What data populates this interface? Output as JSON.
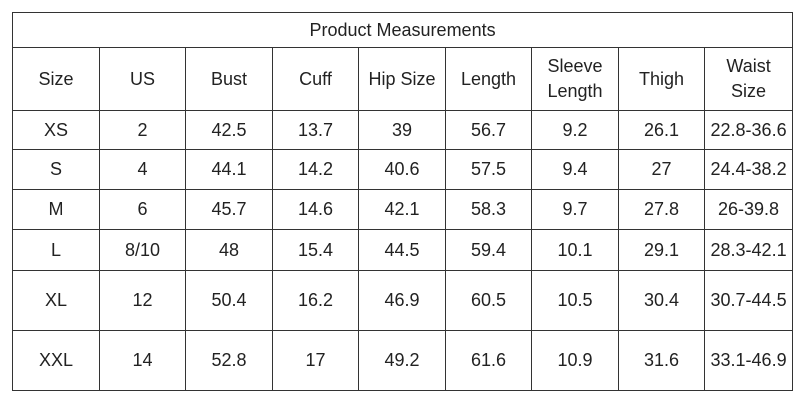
{
  "table": {
    "title": "Product Measurements",
    "header": [
      "Size",
      "US",
      "Bust",
      "Cuff",
      "Hip Size",
      "Length",
      "Sleeve Length",
      "Thigh",
      "Waist Size"
    ],
    "rows": [
      [
        "XS",
        "2",
        "42.5",
        "13.7",
        "39",
        "56.7",
        "9.2",
        "26.1",
        "22.8-36.6"
      ],
      [
        "S",
        "4",
        "44.1",
        "14.2",
        "40.6",
        "57.5",
        "9.4",
        "27",
        "24.4-38.2"
      ],
      [
        "M",
        "6",
        "45.7",
        "14.6",
        "42.1",
        "58.3",
        "9.7",
        "27.8",
        "26-39.8"
      ],
      [
        "L",
        "8/10",
        "48",
        "15.4",
        "44.5",
        "59.4",
        "10.1",
        "29.1",
        "28.3-42.1"
      ],
      [
        "XL",
        "12",
        "50.4",
        "16.2",
        "46.9",
        "60.5",
        "10.5",
        "30.4",
        "30.7-44.5"
      ],
      [
        "XXL",
        "14",
        "52.8",
        "17",
        "49.2",
        "61.6",
        "10.9",
        "31.6",
        "33.1-46.9"
      ]
    ]
  }
}
